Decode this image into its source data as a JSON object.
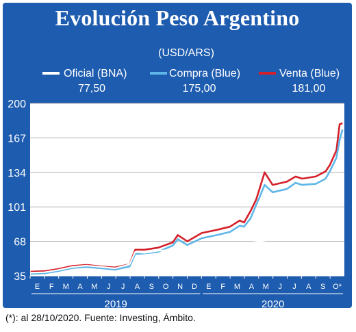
{
  "title": "Evolución Peso Argentino",
  "footnote": "(*): al 28/10/2020. Fuente: Investing, Ámbito.",
  "colors": {
    "background": "#1e5caf",
    "oficial": "#ffffff",
    "compra": "#5eb6e8",
    "venta": "#d4202a"
  },
  "chart_data": {
    "type": "line",
    "unit_label": "(USD/ARS)",
    "ylim": [
      35,
      200
    ],
    "y_ticks": [
      "200",
      "167",
      "134",
      "101",
      "68",
      "35"
    ],
    "y_tick_values": [
      200,
      167,
      134,
      101,
      68,
      35
    ],
    "month_labels": [
      "E",
      "F",
      "M",
      "A",
      "M",
      "J",
      "J",
      "A",
      "S",
      "O",
      "N",
      "D",
      "E",
      "F",
      "M",
      "A",
      "M",
      "J",
      "J",
      "A",
      "S",
      "O*"
    ],
    "year_labels": [
      "2019",
      "2020"
    ],
    "grid": true,
    "legend_position": "top",
    "series": [
      {
        "name": "Oficial (BNA)",
        "last_value_label": "77,50",
        "x": [
          "2019-01-02",
          "2019-02-01",
          "2019-03-01",
          "2019-04-01",
          "2019-05-01",
          "2019-06-03",
          "2019-07-01",
          "2019-08-01",
          "2019-08-13",
          "2019-09-02",
          "2019-10-01",
          "2019-11-01",
          "2019-12-02",
          "2020-01-02",
          "2020-02-03",
          "2020-03-02",
          "2020-04-01",
          "2020-05-04",
          "2020-06-01",
          "2020-07-01",
          "2020-08-03",
          "2020-09-01",
          "2020-10-01",
          "2020-10-28"
        ],
        "values": [
          38.0,
          38.5,
          40.5,
          43.5,
          44.8,
          43.5,
          42.2,
          46.0,
          58.0,
          57.0,
          59.0,
          60.0,
          60.5,
          60.5,
          62.0,
          64.0,
          65.5,
          68.0,
          70.0,
          71.5,
          73.5,
          75.0,
          77.0,
          77.5
        ]
      },
      {
        "name": "Compra (Blue)",
        "last_value_label": "175,00",
        "x": [
          "2019-01-02",
          "2019-02-01",
          "2019-03-01",
          "2019-04-01",
          "2019-05-01",
          "2019-06-03",
          "2019-07-01",
          "2019-08-01",
          "2019-08-13",
          "2019-09-02",
          "2019-10-01",
          "2019-11-01",
          "2019-11-12",
          "2019-12-02",
          "2020-01-02",
          "2020-02-03",
          "2020-03-02",
          "2020-03-23",
          "2020-04-01",
          "2020-04-15",
          "2020-04-27",
          "2020-05-04",
          "2020-05-15",
          "2020-06-01",
          "2020-07-01",
          "2020-07-20",
          "2020-08-03",
          "2020-09-01",
          "2020-09-22",
          "2020-10-01",
          "2020-10-15",
          "2020-10-22",
          "2020-10-28"
        ],
        "values": [
          37.0,
          37.5,
          39.5,
          42.5,
          43.5,
          42.2,
          41.0,
          44.0,
          56.0,
          56.5,
          58.0,
          64.0,
          70.0,
          64.5,
          71.0,
          74.0,
          77.0,
          83.0,
          82.0,
          90.0,
          103.0,
          110.0,
          122.0,
          115.0,
          118.0,
          124.0,
          122.0,
          123.0,
          128.0,
          135.0,
          148.0,
          165.0,
          175.0
        ]
      },
      {
        "name": "Venta (Blue)",
        "last_value_label": "181,00",
        "x": [
          "2019-01-02",
          "2019-02-01",
          "2019-03-01",
          "2019-04-01",
          "2019-05-01",
          "2019-06-03",
          "2019-07-01",
          "2019-08-01",
          "2019-08-13",
          "2019-09-02",
          "2019-10-01",
          "2019-11-01",
          "2019-11-12",
          "2019-12-02",
          "2020-01-02",
          "2020-02-03",
          "2020-03-02",
          "2020-03-23",
          "2020-04-01",
          "2020-04-15",
          "2020-04-27",
          "2020-05-04",
          "2020-05-15",
          "2020-06-01",
          "2020-07-01",
          "2020-07-20",
          "2020-08-03",
          "2020-09-01",
          "2020-09-22",
          "2020-10-01",
          "2020-10-15",
          "2020-10-22",
          "2020-10-28"
        ],
        "values": [
          39.0,
          39.5,
          41.5,
          44.5,
          45.5,
          44.0,
          43.0,
          46.0,
          60.0,
          60.0,
          62.0,
          67.0,
          74.0,
          68.0,
          76.0,
          79.0,
          82.0,
          88.0,
          86.0,
          97.0,
          108.0,
          118.0,
          134.0,
          122.0,
          125.0,
          130.0,
          128.0,
          130.0,
          135.0,
          141.0,
          155.0,
          180.0,
          181.0
        ]
      }
    ]
  }
}
